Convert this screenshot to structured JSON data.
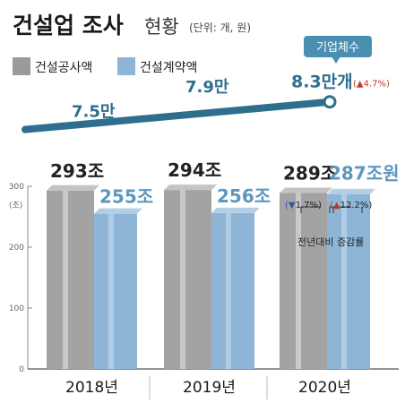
{
  "header": {
    "title": "건설업 조사",
    "subtitle": "현황",
    "unit": "(단위: 개, 원)"
  },
  "legend": [
    {
      "label": "건설공사액",
      "color": "#9a9a9a"
    },
    {
      "label": "건설계약액",
      "color": "#8eb5d6"
    }
  ],
  "callout": {
    "label": "기업체수"
  },
  "axis": {
    "unit_label": "(조)"
  },
  "note": "전년대비 증감률",
  "chart_data": [
    {
      "type": "bar",
      "categories": [
        "2018년",
        "2019년",
        "2020년"
      ],
      "series": [
        {
          "name": "건설공사액",
          "values": [
            293,
            294,
            289
          ],
          "labels": [
            "293조",
            "294조",
            "289조"
          ],
          "color": "#9a9a9a"
        },
        {
          "name": "건설계약액",
          "values": [
            255,
            256,
            287
          ],
          "labels": [
            "255조",
            "256조",
            "287조원"
          ],
          "color": "#8eb5d6"
        }
      ],
      "ylim": [
        0,
        300
      ],
      "yticks": [
        0,
        100,
        200,
        300
      ],
      "ylabel": "(조)",
      "changes_2020": {
        "건설공사액": {
          "value": -1.7,
          "label": "1.7%",
          "arrow": "▼"
        },
        "건설계약액": {
          "value": 12.2,
          "label": "12.2%",
          "arrow": "▲"
        }
      }
    },
    {
      "type": "line",
      "name": "기업체수",
      "x": [
        "2018",
        "2019",
        "2020"
      ],
      "values": [
        75000,
        79000,
        83000
      ],
      "labels": [
        "7.5만",
        "7.9만",
        "8.3만개"
      ],
      "change": {
        "value": 4.7,
        "label": "4.7%",
        "arrow": "▲"
      }
    }
  ]
}
